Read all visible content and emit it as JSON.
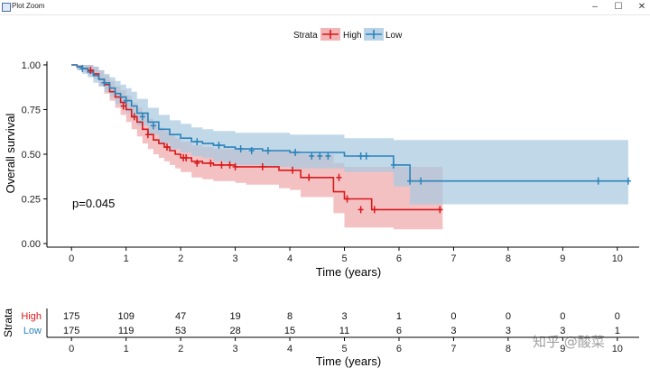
{
  "window": {
    "title": "Plot Zoom",
    "min_glyph": "–",
    "max_glyph": "☐",
    "close_glyph": "✕"
  },
  "colors": {
    "high": "#d7191c",
    "low": "#2b83ba",
    "high_band": "#f0a9ac",
    "low_band": "#a9c9e0"
  },
  "watermark": "知乎 @酸菜",
  "chart_data": {
    "type": "line",
    "title": "",
    "xlabel": "Time (years)",
    "ylabel": "Overall survival",
    "xlim": [
      -0.45,
      10.4
    ],
    "ylim": [
      -0.02,
      1.02
    ],
    "x_ticks": [
      0,
      1,
      2,
      3,
      4,
      5,
      6,
      7,
      8,
      9,
      10
    ],
    "y_ticks": [
      0.0,
      0.25,
      0.5,
      0.75,
      1.0
    ],
    "y_tick_labels": [
      "0.00",
      "0.25",
      "0.50",
      "0.75",
      "1.00"
    ],
    "legend": {
      "title": "Strata",
      "position": "top",
      "entries": [
        "High",
        "Low"
      ]
    },
    "annotation": "p=0.045",
    "series": [
      {
        "name": "High",
        "color": "#d7191c",
        "x": [
          0,
          0.1,
          0.2,
          0.3,
          0.4,
          0.5,
          0.6,
          0.7,
          0.8,
          0.9,
          1.0,
          1.1,
          1.2,
          1.3,
          1.4,
          1.5,
          1.6,
          1.7,
          1.8,
          1.9,
          2.0,
          2.2,
          2.4,
          2.6,
          2.8,
          3.0,
          3.2,
          3.5,
          3.8,
          4.0,
          4.2,
          4.6,
          4.8,
          5.0,
          5.3,
          5.5,
          5.9,
          6.8
        ],
        "y": [
          1.0,
          0.99,
          0.98,
          0.97,
          0.95,
          0.92,
          0.89,
          0.85,
          0.82,
          0.79,
          0.75,
          0.71,
          0.68,
          0.64,
          0.61,
          0.58,
          0.56,
          0.54,
          0.52,
          0.5,
          0.48,
          0.46,
          0.45,
          0.44,
          0.44,
          0.43,
          0.43,
          0.43,
          0.41,
          0.41,
          0.37,
          0.37,
          0.29,
          0.25,
          0.25,
          0.19,
          0.19,
          0.19
        ],
        "lower": [
          1.0,
          0.97,
          0.96,
          0.94,
          0.92,
          0.88,
          0.84,
          0.8,
          0.76,
          0.72,
          0.68,
          0.64,
          0.6,
          0.56,
          0.53,
          0.5,
          0.48,
          0.46,
          0.44,
          0.42,
          0.4,
          0.37,
          0.36,
          0.35,
          0.35,
          0.34,
          0.33,
          0.33,
          0.31,
          0.3,
          0.26,
          0.26,
          0.17,
          0.09,
          0.09,
          0.09,
          0.08,
          0.08
        ],
        "upper": [
          1.0,
          1.0,
          1.0,
          1.0,
          0.99,
          0.97,
          0.94,
          0.91,
          0.88,
          0.86,
          0.83,
          0.79,
          0.76,
          0.73,
          0.7,
          0.67,
          0.65,
          0.63,
          0.61,
          0.59,
          0.57,
          0.55,
          0.54,
          0.53,
          0.53,
          0.53,
          0.52,
          0.52,
          0.52,
          0.52,
          0.5,
          0.5,
          0.45,
          0.43,
          0.43,
          0.43,
          0.43,
          0.43
        ],
        "censor_x": [
          0.35,
          0.95,
          1.15,
          1.4,
          1.75,
          2.05,
          2.1,
          2.3,
          2.55,
          2.75,
          2.9,
          3.0,
          3.5,
          4.05,
          4.35,
          4.9,
          5.05,
          5.3,
          5.55,
          6.75
        ],
        "censor_y": [
          0.97,
          0.77,
          0.71,
          0.61,
          0.54,
          0.48,
          0.48,
          0.45,
          0.45,
          0.44,
          0.44,
          0.43,
          0.43,
          0.41,
          0.37,
          0.37,
          0.25,
          0.19,
          0.19,
          0.19
        ]
      },
      {
        "name": "Low",
        "color": "#2b83ba",
        "x": [
          0,
          0.1,
          0.2,
          0.3,
          0.4,
          0.5,
          0.6,
          0.7,
          0.8,
          0.9,
          1.0,
          1.1,
          1.2,
          1.4,
          1.6,
          1.8,
          2.0,
          2.2,
          2.4,
          2.6,
          2.8,
          3.0,
          3.5,
          4.0,
          5.0,
          5.7,
          5.9,
          6.2,
          6.5,
          10.2
        ],
        "y": [
          1.0,
          0.99,
          0.98,
          0.96,
          0.94,
          0.92,
          0.9,
          0.87,
          0.84,
          0.82,
          0.8,
          0.77,
          0.73,
          0.68,
          0.64,
          0.61,
          0.59,
          0.57,
          0.56,
          0.55,
          0.54,
          0.53,
          0.52,
          0.51,
          0.49,
          0.49,
          0.44,
          0.35,
          0.35,
          0.35
        ],
        "lower": [
          1.0,
          0.97,
          0.95,
          0.93,
          0.9,
          0.88,
          0.85,
          0.82,
          0.78,
          0.76,
          0.73,
          0.7,
          0.66,
          0.61,
          0.56,
          0.53,
          0.51,
          0.49,
          0.48,
          0.46,
          0.45,
          0.44,
          0.43,
          0.42,
          0.4,
          0.4,
          0.32,
          0.22,
          0.22,
          0.22
        ],
        "upper": [
          1.0,
          1.0,
          1.0,
          1.0,
          0.99,
          0.97,
          0.95,
          0.93,
          0.91,
          0.89,
          0.87,
          0.85,
          0.81,
          0.76,
          0.72,
          0.69,
          0.67,
          0.65,
          0.64,
          0.63,
          0.63,
          0.62,
          0.62,
          0.61,
          0.59,
          0.59,
          0.58,
          0.58,
          0.58,
          0.58
        ],
        "censor_x": [
          0.2,
          0.6,
          1.0,
          1.3,
          1.5,
          2.3,
          2.7,
          3.1,
          3.3,
          3.6,
          4.1,
          4.4,
          4.55,
          4.7,
          5.3,
          5.4,
          5.9,
          6.2,
          6.4,
          9.65,
          10.2
        ],
        "censor_y": [
          0.98,
          0.9,
          0.8,
          0.71,
          0.66,
          0.57,
          0.55,
          0.53,
          0.52,
          0.52,
          0.51,
          0.49,
          0.49,
          0.49,
          0.49,
          0.49,
          0.44,
          0.35,
          0.35,
          0.35,
          0.35
        ]
      }
    ],
    "risk_table": {
      "ylabel": "Strata",
      "xlabel": "Time (years)",
      "rows": [
        {
          "label": "High",
          "color": "#d7191c",
          "values": [
            "175",
            "109",
            "47",
            "19",
            "8",
            "3",
            "1",
            "0",
            "0",
            "0",
            "0"
          ]
        },
        {
          "label": "Low",
          "color": "#2b83ba",
          "values": [
            "175",
            "119",
            "53",
            "28",
            "15",
            "11",
            "6",
            "3",
            "3",
            "3",
            "1"
          ]
        }
      ]
    }
  }
}
